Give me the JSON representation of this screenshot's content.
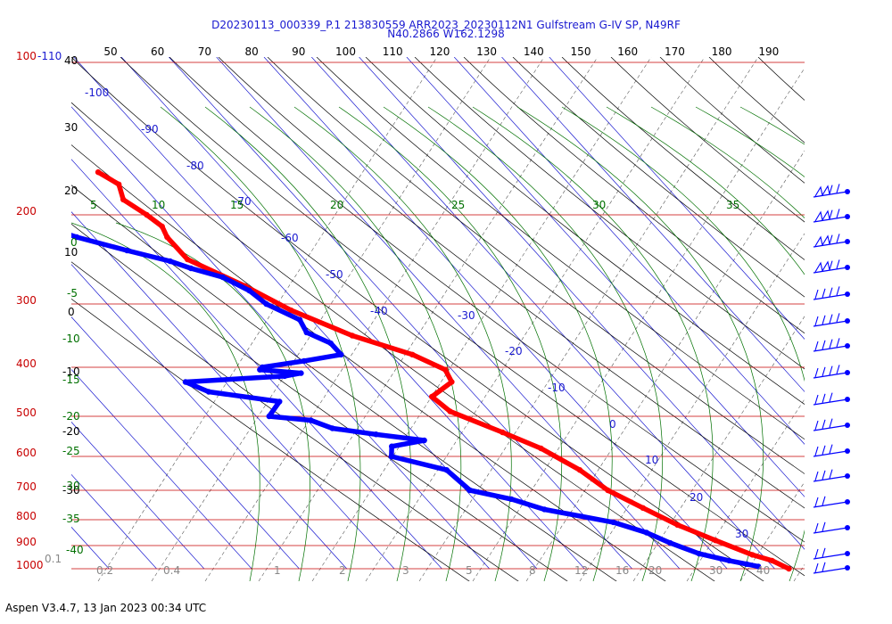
{
  "header": {
    "title_line1": "D20230113_000339_P.1 213830559 ARR2023_20230112N1 Gulfstream G-IV SP, N49RF",
    "title_line2": "N40.2866 W162.1298"
  },
  "footer": {
    "version_text": "Aspen V3.4.7, 13 Jan 2023  00:34 UTC"
  },
  "colors": {
    "temperature": "#ff0000",
    "dewpoint": "#0000ff",
    "isobar": "#c80000",
    "isotherm": "#1a1ad0",
    "dry_adiabat": "#000000",
    "moist_adiabat": "#007000",
    "mixing_ratio": "#555555"
  },
  "chart_data": {
    "type": "skew-t",
    "pressure_axis_hpa": [
      "100-110",
      "200",
      "300",
      "400",
      "500",
      "600",
      "700",
      "800",
      "900",
      "1000"
    ],
    "pressure_levels": [
      100,
      200,
      300,
      400,
      500,
      600,
      700,
      800,
      900,
      1000
    ],
    "top_axis_labels": [
      "50",
      "60",
      "70",
      "80",
      "90",
      "100",
      "110",
      "120",
      "130",
      "140",
      "150",
      "160",
      "170",
      "180",
      "190"
    ],
    "isotherm_labels": [
      "-100",
      "-90",
      "-80",
      "-70",
      "-60",
      "-50",
      "-40",
      "-30",
      "-20",
      "-10",
      "0",
      "10",
      "20",
      "30"
    ],
    "dry_adiabat_labels": [
      "40",
      "30",
      "20",
      "10",
      "0",
      "-10",
      "-20",
      "-30"
    ],
    "moist_adiabat_labels": [
      "5",
      "10",
      "15",
      "20",
      "25",
      "30",
      "35"
    ],
    "moist_left_labels": [
      "0",
      "-5",
      "-10",
      "-15",
      "-20",
      "-25",
      "-30",
      "-35",
      "-40"
    ],
    "mixing_ratio_labels": [
      "0.1",
      "0.2",
      "0.4",
      "1",
      "2",
      "3",
      "5",
      "8",
      "12",
      "16",
      "20",
      "30",
      "40"
    ],
    "series": [
      {
        "name": "Temperature",
        "color": "#ff0000",
        "points": [
          [
            172,
            -56
          ],
          [
            180,
            -54
          ],
          [
            190,
            -56
          ],
          [
            200,
            -54
          ],
          [
            213,
            -53
          ],
          [
            225,
            -54
          ],
          [
            250,
            -54
          ],
          [
            280,
            -47
          ],
          [
            310,
            -42
          ],
          [
            350,
            -34
          ],
          [
            380,
            -25
          ],
          [
            405,
            -21
          ],
          [
            430,
            -22
          ],
          [
            460,
            -29
          ],
          [
            490,
            -28
          ],
          [
            540,
            -21
          ],
          [
            580,
            -16
          ],
          [
            640,
            -12
          ],
          [
            700,
            -10
          ],
          [
            760,
            -6
          ],
          [
            820,
            -2
          ],
          [
            880,
            3
          ],
          [
            940,
            8
          ],
          [
            965,
            11
          ],
          [
            1000,
            13
          ]
        ]
      },
      {
        "name": "Dewpoint",
        "color": "#0000ff",
        "points": [
          [
            205,
            -81
          ],
          [
            225,
            -73
          ],
          [
            240,
            -65
          ],
          [
            252,
            -58
          ],
          [
            260,
            -55
          ],
          [
            270,
            -50
          ],
          [
            285,
            -47
          ],
          [
            300,
            -46
          ],
          [
            325,
            -42
          ],
          [
            345,
            -43
          ],
          [
            362,
            -40
          ],
          [
            380,
            -40
          ],
          [
            390,
            -49
          ],
          [
            400,
            -59
          ],
          [
            405,
            -60
          ],
          [
            412,
            -52
          ],
          [
            418,
            -56
          ],
          [
            430,
            -78
          ],
          [
            450,
            -75
          ],
          [
            470,
            -62
          ],
          [
            500,
            -67
          ],
          [
            510,
            -59
          ],
          [
            530,
            -56
          ],
          [
            545,
            -48
          ],
          [
            560,
            -39
          ],
          [
            575,
            -47
          ],
          [
            600,
            -49
          ],
          [
            640,
            -40
          ],
          [
            700,
            -39
          ],
          [
            730,
            -32
          ],
          [
            765,
            -27
          ],
          [
            810,
            -15
          ],
          [
            850,
            -10
          ],
          [
            890,
            -7
          ],
          [
            935,
            -3
          ],
          [
            965,
            2
          ],
          [
            980,
            5
          ],
          [
            990,
            7
          ]
        ]
      }
    ],
    "wind_barbs_column": "right",
    "grid": true
  }
}
